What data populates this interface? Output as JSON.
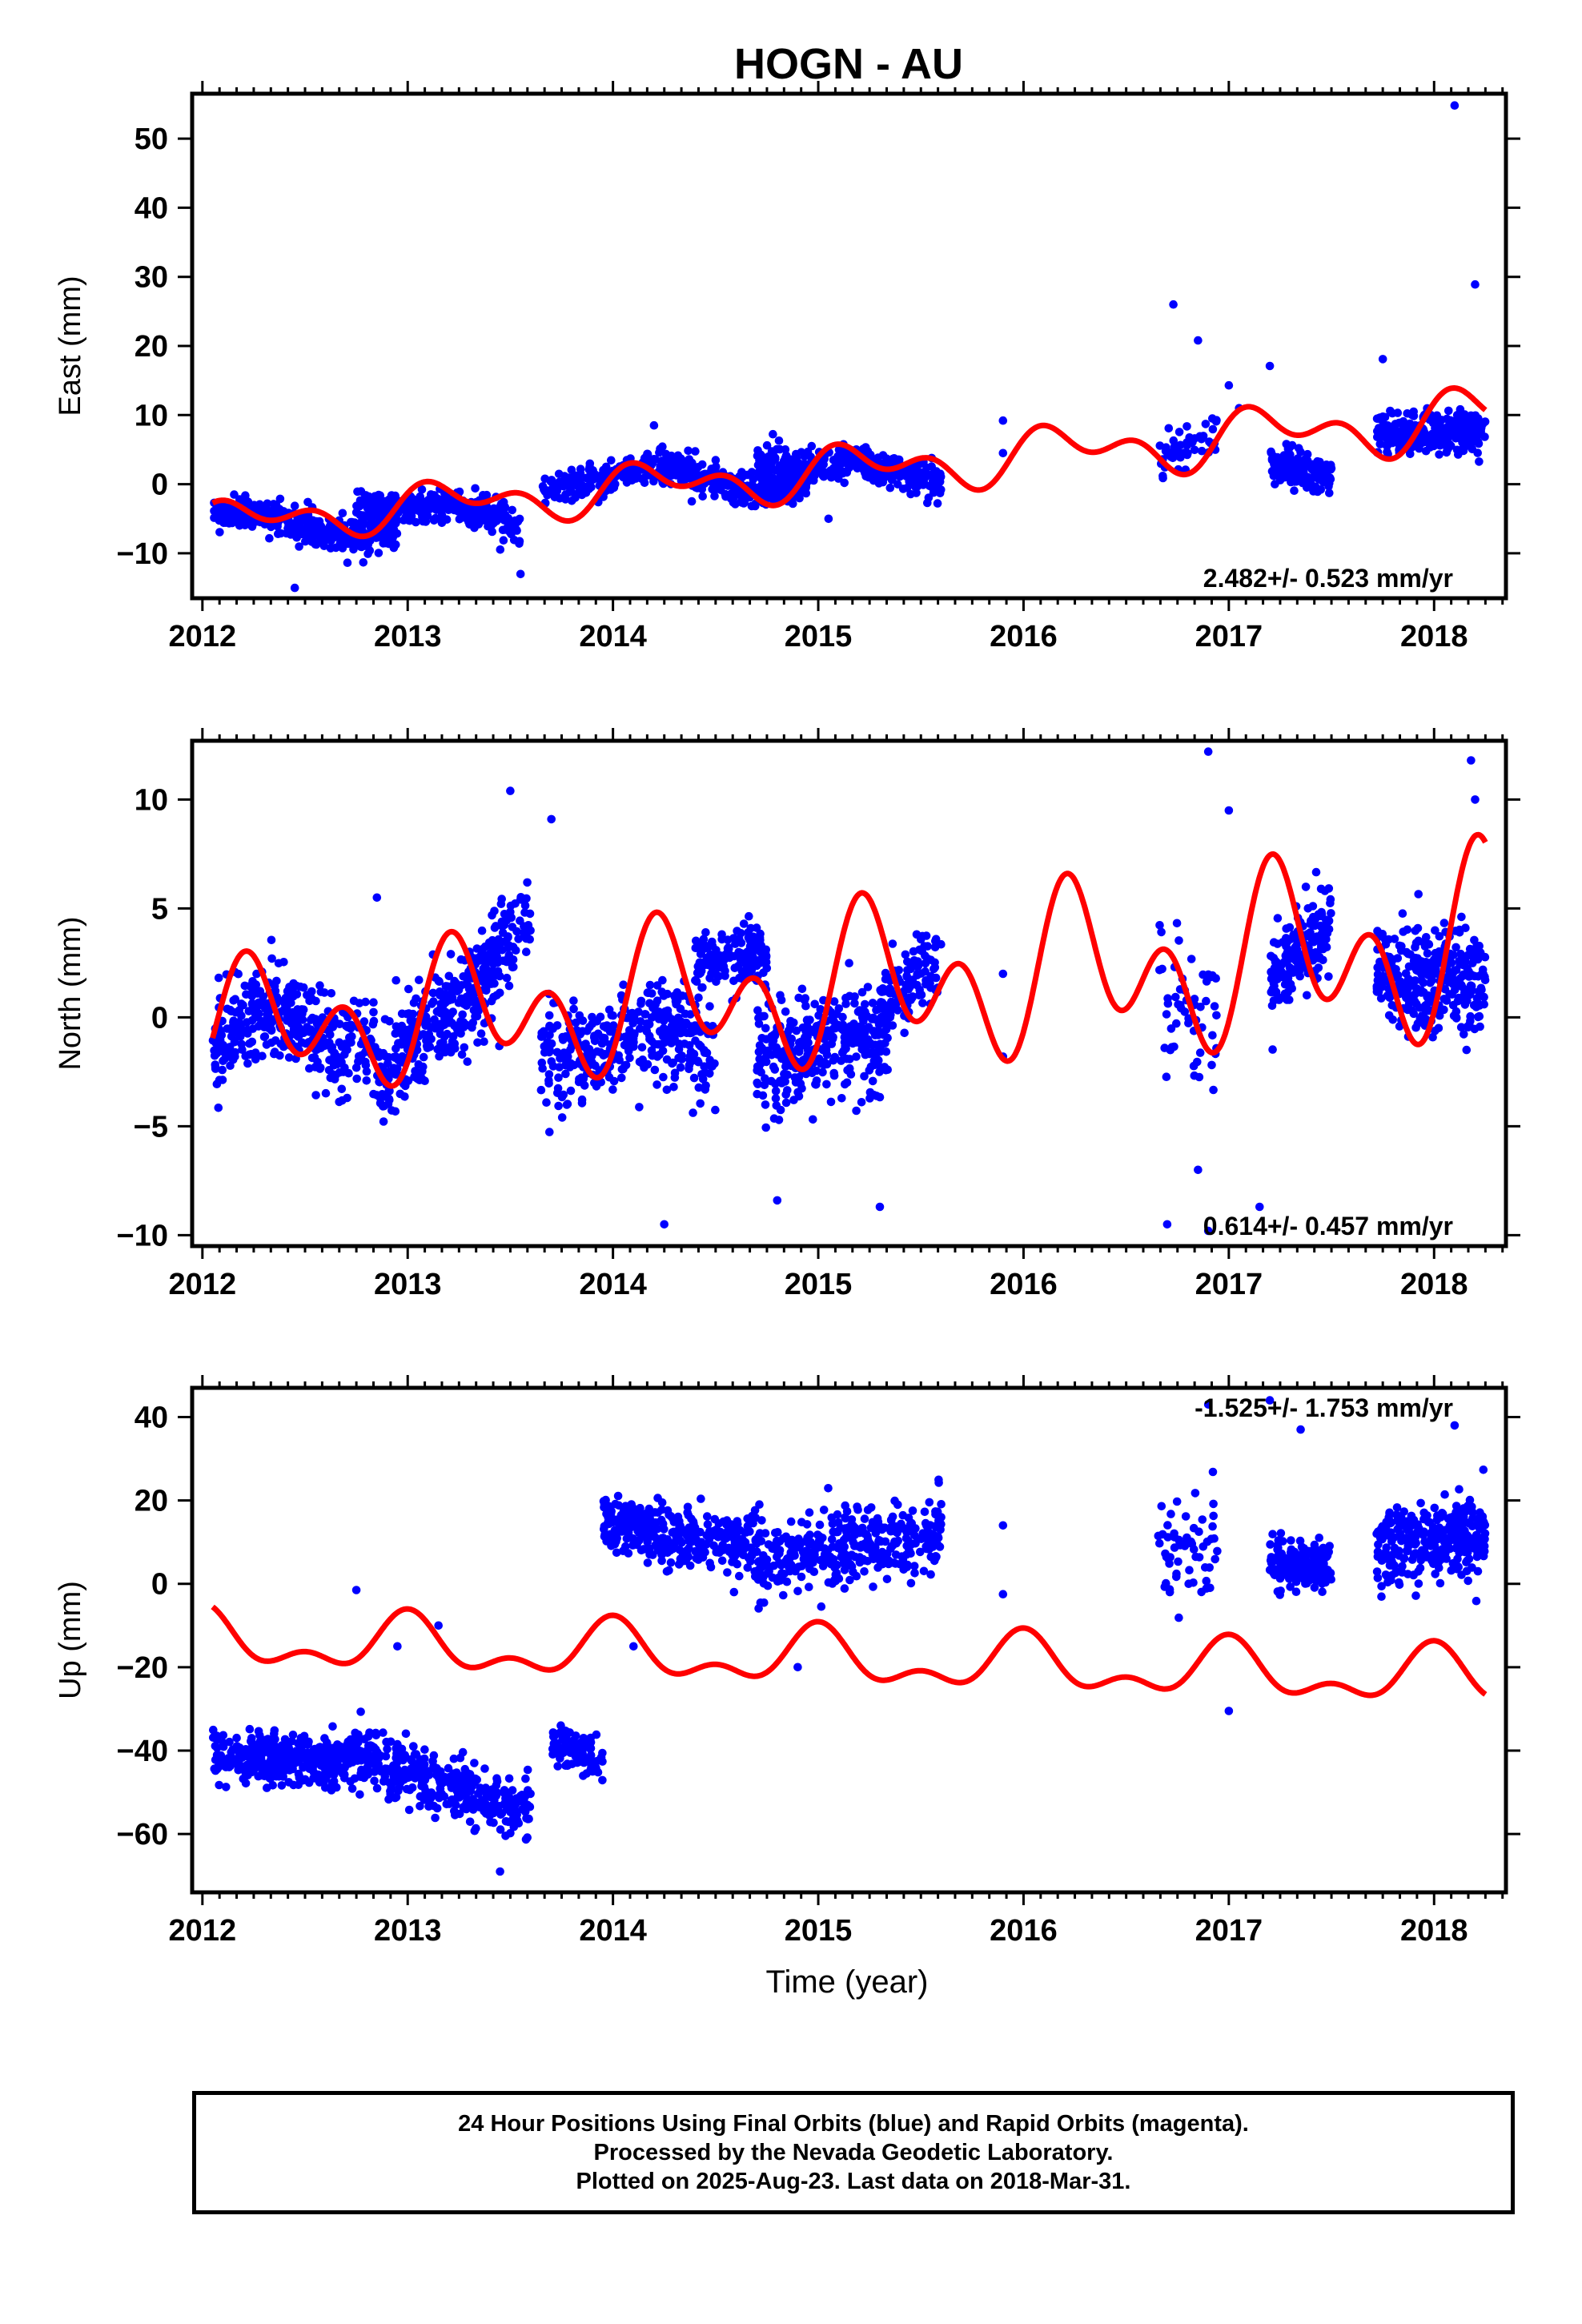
{
  "title": "HOGN - AU",
  "xlabel": "Time (year)",
  "footer": {
    "line1": "24 Hour Positions Using Final Orbits (blue) and Rapid Orbits (magenta).",
    "line2": "Processed by the Nevada Geodetic Laboratory.",
    "line3": "Plotted on 2025-Aug-23. Last data on 2018-Mar-31."
  },
  "colors": {
    "points": "#0000ff",
    "fit": "#ff0000",
    "axis": "#000000"
  },
  "chart_data": [
    {
      "type": "scatter",
      "panel": "east",
      "ylabel": "East (mm)",
      "rate_label": "2.482+/- 0.523 mm/yr",
      "xlim": [
        2011.95,
        2018.35
      ],
      "ylim": [
        -16.5,
        56.5
      ],
      "xticks": [
        2012,
        2013,
        2014,
        2015,
        2016,
        2017,
        2018
      ],
      "yticks": [
        -10,
        0,
        10,
        20,
        30,
        40,
        50
      ],
      "ytick_labels": [
        "−10",
        "0",
        "10",
        "20",
        "30",
        "40",
        "50"
      ],
      "series": [
        {
          "kind": "points",
          "clusters": [
            {
              "x": [
                2012.05,
                2012.95
              ],
              "y_start": -5.5,
              "y_end": -6.5,
              "amp": 1.5,
              "noise": 2.2,
              "n": 400
            },
            {
              "x": [
                2012.75,
                2013.55
              ],
              "y_start": -2.5,
              "y_end": -5.5,
              "amp": 1.0,
              "noise": 2.2,
              "n": 330
            },
            {
              "x": [
                2013.65,
                2013.95
              ],
              "y_start": -1.0,
              "y_end": 0.5,
              "amp": 0.0,
              "noise": 2.3,
              "n": 100
            },
            {
              "x": [
                2013.95,
                2014.95
              ],
              "y_start": 1.0,
              "y_end": 0.5,
              "amp": 1.5,
              "noise": 2.2,
              "n": 420
            },
            {
              "x": [
                2014.7,
                2015.6
              ],
              "y_start": 4.0,
              "y_end": 0.5,
              "amp": 1.0,
              "noise": 2.2,
              "n": 380
            },
            {
              "x": [
                2016.65,
                2016.95
              ],
              "y_start": 4.5,
              "y_end": 6.5,
              "amp": 0.0,
              "noise": 3.0,
              "n": 55
            },
            {
              "x": [
                2017.2,
                2017.5
              ],
              "y_start": 3.0,
              "y_end": 1.0,
              "amp": 0.0,
              "noise": 2.2,
              "n": 160
            },
            {
              "x": [
                2017.72,
                2018.25
              ],
              "y_start": 8.0,
              "y_end": 7.0,
              "amp": 0.5,
              "noise": 2.6,
              "n": 280
            }
          ],
          "outliers": [
            [
              2015.9,
              9.2
            ],
            [
              2015.9,
              4.5
            ],
            [
              2016.73,
              26.0
            ],
            [
              2016.85,
              20.8
            ],
            [
              2017.0,
              14.3
            ],
            [
              2017.2,
              17.1
            ],
            [
              2017.75,
              18.1
            ],
            [
              2018.1,
              54.8
            ],
            [
              2018.2,
              28.9
            ],
            [
              2017.05,
              11.0
            ],
            [
              2016.92,
              9.5
            ],
            [
              2013.55,
              -13.0
            ],
            [
              2012.45,
              -15.0
            ],
            [
              2014.2,
              8.5
            ],
            [
              2015.05,
              -5.0
            ]
          ]
        },
        {
          "kind": "fit",
          "trend": [
            2.482,
            -5.8
          ],
          "annual": [
            2.0,
            0.6
          ],
          "semiannual": [
            1.2,
            1.3
          ],
          "amp_growth": 0.07,
          "x_range": [
            2012.05,
            2018.25
          ]
        }
      ]
    },
    {
      "type": "scatter",
      "panel": "north",
      "ylabel": "North (mm)",
      "rate_label": "0.614+/- 0.457 mm/yr",
      "xlim": [
        2011.95,
        2018.35
      ],
      "ylim": [
        -10.5,
        12.7
      ],
      "xticks": [
        2012,
        2013,
        2014,
        2015,
        2016,
        2017,
        2018
      ],
      "yticks": [
        -10,
        -5,
        0,
        5,
        10
      ],
      "ytick_labels": [
        "−10",
        "−5",
        "0",
        "5",
        "10"
      ],
      "series": [
        {
          "kind": "points",
          "clusters": [
            {
              "x": [
                2012.05,
                2012.85
              ],
              "y_start": -2.5,
              "y_end": 1.0,
              "amp": 1.8,
              "noise": 2.0,
              "n": 380
            },
            {
              "x": [
                2012.85,
                2013.45
              ],
              "y_start": -2.0,
              "y_end": 0.5,
              "amp": 1.0,
              "noise": 2.0,
              "n": 300
            },
            {
              "x": [
                2013.3,
                2013.6
              ],
              "y_start": 2.0,
              "y_end": 4.5,
              "amp": 0.0,
              "noise": 1.8,
              "n": 110
            },
            {
              "x": [
                2013.65,
                2014.5
              ],
              "y_start": -0.5,
              "y_end": -2.0,
              "amp": 1.0,
              "noise": 2.0,
              "n": 370
            },
            {
              "x": [
                2014.4,
                2014.75
              ],
              "y_start": 2.5,
              "y_end": 3.0,
              "amp": 0.0,
              "noise": 1.3,
              "n": 150
            },
            {
              "x": [
                2014.7,
                2015.35
              ],
              "y_start": -1.0,
              "y_end": -2.0,
              "amp": 0.8,
              "noise": 2.2,
              "n": 330
            },
            {
              "x": [
                2015.3,
                2015.6
              ],
              "y_start": 0.5,
              "y_end": 3.0,
              "amp": 0.0,
              "noise": 1.6,
              "n": 110
            },
            {
              "x": [
                2016.65,
                2016.95
              ],
              "y_start": 1.0,
              "y_end": -1.0,
              "amp": 0.0,
              "noise": 3.2,
              "n": 55
            },
            {
              "x": [
                2017.2,
                2017.5
              ],
              "y_start": 1.5,
              "y_end": 4.5,
              "amp": 0.0,
              "noise": 1.9,
              "n": 170
            },
            {
              "x": [
                2017.72,
                2018.25
              ],
              "y_start": 2.5,
              "y_end": 1.0,
              "amp": 0.5,
              "noise": 2.3,
              "n": 300
            }
          ],
          "outliers": [
            [
              2016.9,
              12.2
            ],
            [
              2017.0,
              9.5
            ],
            [
              2018.18,
              11.8
            ],
            [
              2018.2,
              10.0
            ],
            [
              2013.5,
              10.4
            ],
            [
              2013.7,
              9.1
            ],
            [
              2016.9,
              -9.8
            ],
            [
              2016.7,
              -9.5
            ],
            [
              2017.15,
              -8.7
            ],
            [
              2014.25,
              -9.5
            ],
            [
              2015.3,
              -8.7
            ],
            [
              2014.8,
              -8.4
            ],
            [
              2012.85,
              5.5
            ],
            [
              2015.9,
              2.0
            ],
            [
              2015.9,
              -1.8
            ],
            [
              2016.85,
              -7.0
            ]
          ]
        },
        {
          "kind": "fit",
          "trend": [
            0.614,
            -0.6
          ],
          "annual": [
            1.6,
            -0.3
          ],
          "semiannual": [
            1.2,
            -1.6
          ],
          "amp_growth": 0.08,
          "x_range": [
            2012.05,
            2018.25
          ]
        }
      ]
    },
    {
      "type": "scatter",
      "panel": "up",
      "ylabel": "Up (mm)",
      "rate_label": "-1.525+/- 1.753 mm/yr",
      "xlim": [
        2011.95,
        2018.35
      ],
      "ylim": [
        -74,
        47
      ],
      "xticks": [
        2012,
        2013,
        2014,
        2015,
        2016,
        2017,
        2018
      ],
      "yticks": [
        -60,
        -40,
        -20,
        0,
        20,
        40
      ],
      "ytick_labels": [
        "−60",
        "−40",
        "−20",
        "0",
        "20",
        "40"
      ],
      "series": [
        {
          "kind": "points",
          "clusters": [
            {
              "x": [
                2012.05,
                2012.7
              ],
              "y_start": -41.0,
              "y_end": -43.0,
              "amp": 0.0,
              "noise": 5.5,
              "n": 330
            },
            {
              "x": [
                2012.7,
                2013.6
              ],
              "y_start": -40.0,
              "y_end": -55.0,
              "amp": 0.0,
              "noise": 6.5,
              "n": 380
            },
            {
              "x": [
                2013.7,
                2013.95
              ],
              "y_start": -38.0,
              "y_end": -42.0,
              "amp": 0.0,
              "noise": 5.0,
              "n": 90
            },
            {
              "x": [
                2013.95,
                2014.7
              ],
              "y_start": 15.0,
              "y_end": 8.0,
              "amp": 0.0,
              "noise": 6.5,
              "n": 330
            },
            {
              "x": [
                2014.7,
                2015.6
              ],
              "y_start": 5.0,
              "y_end": 12.0,
              "amp": 0.0,
              "noise": 8.0,
              "n": 380
            },
            {
              "x": [
                2016.65,
                2016.95
              ],
              "y_start": 5.0,
              "y_end": 8.0,
              "amp": 0.0,
              "noise": 12.0,
              "n": 60
            },
            {
              "x": [
                2017.2,
                2017.5
              ],
              "y_start": 5.0,
              "y_end": 4.0,
              "amp": 0.0,
              "noise": 5.0,
              "n": 170
            },
            {
              "x": [
                2017.72,
                2018.25
              ],
              "y_start": 8.0,
              "y_end": 12.0,
              "amp": 0.0,
              "noise": 9.0,
              "n": 300
            }
          ],
          "outliers": [
            [
              2017.0,
              -30.5
            ],
            [
              2016.9,
              43.0
            ],
            [
              2017.2,
              44.0
            ],
            [
              2017.35,
              37.0
            ],
            [
              2015.9,
              -2.5
            ],
            [
              2015.9,
              14.0
            ],
            [
              2014.9,
              -20.0
            ],
            [
              2014.1,
              -15.0
            ],
            [
              2012.75,
              -1.5
            ],
            [
              2012.95,
              -15.0
            ],
            [
              2013.15,
              -10.0
            ],
            [
              2013.45,
              -69.0
            ],
            [
              2018.1,
              38.0
            ]
          ]
        },
        {
          "kind": "fit",
          "trend": [
            -1.525,
            -13.5
          ],
          "annual": [
            0.0,
            5.5
          ],
          "semiannual": [
            0.0,
            3.5
          ],
          "amp_growth": 0.0,
          "x_range": [
            2012.05,
            2018.25
          ]
        }
      ]
    }
  ]
}
